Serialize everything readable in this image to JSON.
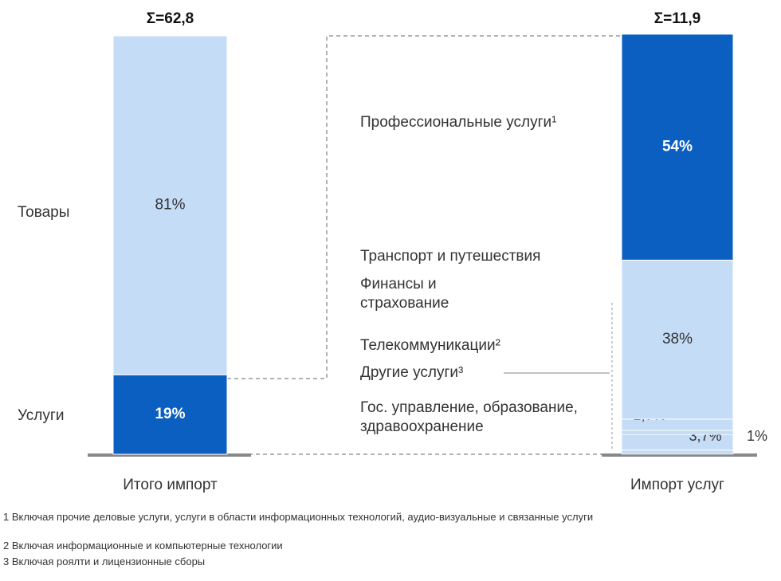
{
  "chart_data": {
    "type": "stacked_bar",
    "bars": [
      {
        "name": "Итого импорт",
        "total_label": "Σ=62,8",
        "categories": [
          "Услуги",
          "Товары"
        ],
        "values": [
          19,
          81
        ],
        "value_labels": [
          "19%",
          "81%"
        ],
        "colors": [
          "#0b5fc1",
          "#c5dcf7"
        ]
      },
      {
        "name": "Импорт услуг",
        "total_label": "Σ=11,9",
        "categories": [
          "Гос. управление, образование, здравоохранение",
          "Другие услуги³",
          "Телекоммуникации²",
          "Финансы и страхование",
          "Транспорт и путешествия",
          "Профессиональные услуги¹"
        ],
        "values": [
          1,
          3.7,
          1,
          2.7,
          38,
          54
        ],
        "value_labels": [
          "1%",
          "3,7%",
          "1%",
          "2,7%",
          "38%",
          "54%"
        ],
        "colors": [
          "#c5dcf7",
          "#c5dcf7",
          "#c5dcf7",
          "#c5dcf7",
          "#c5dcf7",
          "#0b5fc1"
        ]
      }
    ],
    "footnotes": [
      "1 Включая прочие деловые услуги, услуги в области информационных технологий, аудио-визуальные и связанные услуги",
      "2 Включая информационные и компьютерные технологии",
      "3 Включая роялти и лицензионные сборы"
    ]
  }
}
